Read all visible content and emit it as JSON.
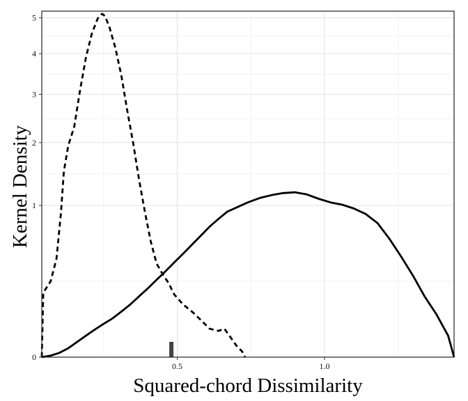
{
  "chart_data": {
    "type": "line",
    "title": "",
    "xlabel": "Squared-chord Dissimilarity",
    "ylabel": "Kernel Density",
    "xlim": [
      0.04,
      1.44
    ],
    "ylim": [
      0,
      5.2
    ],
    "y_scale": "sqrt",
    "grid": true,
    "legend": "none",
    "x_ticks": [
      {
        "value": 0.5,
        "label": "0.5"
      },
      {
        "value": 1.0,
        "label": "1.0"
      }
    ],
    "y_ticks": [
      {
        "value": 0,
        "label": "0"
      },
      {
        "value": 1,
        "label": "1"
      },
      {
        "value": 2,
        "label": "2"
      },
      {
        "value": 3,
        "label": "3"
      },
      {
        "value": 4,
        "label": "4"
      },
      {
        "value": 5,
        "label": "5"
      }
    ],
    "series": [
      {
        "style": "dashed",
        "color": "#000000",
        "x": [
          0.04,
          0.045,
          0.07,
          0.09,
          0.105,
          0.115,
          0.13,
          0.15,
          0.17,
          0.19,
          0.21,
          0.23,
          0.245,
          0.255,
          0.27,
          0.29,
          0.31,
          0.33,
          0.35,
          0.37,
          0.39,
          0.41,
          0.43,
          0.45,
          0.47,
          0.49,
          0.52,
          0.55,
          0.58,
          0.61,
          0.64,
          0.66,
          0.68,
          0.7,
          0.72,
          0.73
        ],
        "y": [
          0.0,
          0.18,
          0.25,
          0.42,
          0.9,
          1.5,
          1.95,
          2.3,
          3.1,
          3.9,
          4.55,
          4.98,
          5.12,
          5.05,
          4.72,
          4.15,
          3.45,
          2.65,
          2.0,
          1.38,
          0.92,
          0.58,
          0.38,
          0.3,
          0.24,
          0.17,
          0.12,
          0.09,
          0.06,
          0.035,
          0.03,
          0.035,
          0.018,
          0.006,
          0.0015,
          0.0
        ]
      },
      {
        "style": "solid",
        "color": "#000000",
        "x": [
          0.04,
          0.07,
          0.1,
          0.13,
          0.16,
          0.19,
          0.22,
          0.25,
          0.28,
          0.31,
          0.34,
          0.37,
          0.4,
          0.43,
          0.46,
          0.49,
          0.52,
          0.55,
          0.58,
          0.61,
          0.64,
          0.67,
          0.7,
          0.74,
          0.78,
          0.82,
          0.86,
          0.9,
          0.94,
          0.98,
          1.02,
          1.06,
          1.1,
          1.14,
          1.18,
          1.22,
          1.26,
          1.3,
          1.34,
          1.38,
          1.42,
          1.44
        ],
        "y": [
          0.0,
          0.0001,
          0.0008,
          0.0035,
          0.01,
          0.02,
          0.033,
          0.048,
          0.065,
          0.09,
          0.12,
          0.16,
          0.205,
          0.26,
          0.32,
          0.39,
          0.465,
          0.55,
          0.64,
          0.74,
          0.83,
          0.92,
          0.97,
          1.04,
          1.1,
          1.14,
          1.17,
          1.18,
          1.15,
          1.09,
          1.04,
          1.01,
          0.96,
          0.89,
          0.78,
          0.61,
          0.44,
          0.29,
          0.16,
          0.08,
          0.02,
          0.0
        ]
      }
    ],
    "marker": {
      "x": 0.48,
      "color": "#444444"
    }
  }
}
